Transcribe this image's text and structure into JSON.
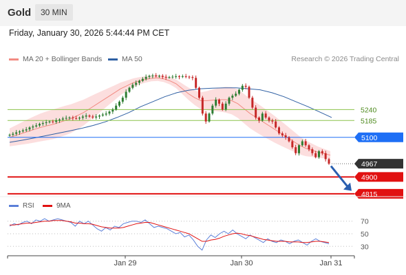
{
  "header": {
    "instrument": "Gold",
    "timeframe": "30 MIN"
  },
  "datetime": "Friday, January 30, 2026 5:44:44 PM CET",
  "legend": {
    "ma20": {
      "label": "MA 20 + Bollinger Bands",
      "color": "#f28b82"
    },
    "ma50": {
      "label": "MA 50",
      "color": "#2e5fa3"
    },
    "credit": "Research © 2026 Trading Central"
  },
  "rsi_legend": {
    "rsi": {
      "label": "RSI",
      "color": "#5b7fd8"
    },
    "ma9": {
      "label": "9MA",
      "color": "#e11111"
    }
  },
  "chart_data": [
    {
      "type": "candlestick",
      "title": "Gold",
      "x_ticks": [
        "Jan 29",
        "Jan 30",
        "Jan 31"
      ],
      "levels": [
        {
          "label": "5240",
          "value": 5240,
          "color": "#8bc34a",
          "style": "text"
        },
        {
          "label": "5185",
          "value": 5185,
          "color": "#8bc34a",
          "style": "text"
        },
        {
          "label": "5100",
          "value": 5100,
          "color": "#1e6ff5",
          "style": "badge"
        },
        {
          "label": "4967",
          "value": 4967,
          "color": "#333333",
          "style": "badge"
        },
        {
          "label": "4900",
          "value": 4900,
          "color": "#e11111",
          "style": "badge"
        },
        {
          "label": "4815",
          "value": 4815,
          "color": "#e11111",
          "style": "badge"
        }
      ],
      "series": [
        {
          "name": "MA 20 + Bollinger Bands",
          "color": "#f28b82"
        },
        {
          "name": "MA 50",
          "color": "#2e5fa3"
        }
      ],
      "close": [
        5113,
        5118,
        5125,
        5130,
        5135,
        5140,
        5150,
        5155,
        5160,
        5168,
        5172,
        5176,
        5180,
        5178,
        5185,
        5190,
        5195,
        5198,
        5200,
        5197,
        5195,
        5199,
        5205,
        5210,
        5205,
        5200,
        5205,
        5210,
        5215,
        5220,
        5230,
        5240,
        5260,
        5280,
        5300,
        5330,
        5350,
        5365,
        5375,
        5385,
        5395,
        5405,
        5410,
        5412,
        5408,
        5410,
        5405,
        5402,
        5404,
        5406,
        5408,
        5405,
        5408,
        5406,
        5404,
        5400,
        5350,
        5300,
        5220,
        5180,
        5220,
        5260,
        5290,
        5270,
        5240,
        5270,
        5300,
        5310,
        5320,
        5340,
        5360,
        5355,
        5300,
        5250,
        5200,
        5185,
        5220,
        5200,
        5185,
        5180,
        5150,
        5120,
        5110,
        5100,
        5080,
        5050,
        5020,
        5060,
        5080,
        5060,
        5040,
        5020,
        5000,
        5030,
        5020,
        4990,
        4967
      ],
      "ma20": [
        5100,
        5110,
        5120,
        5130,
        5140,
        5150,
        5158,
        5165,
        5175,
        5185,
        5195,
        5210,
        5225,
        5245,
        5265,
        5285,
        5305,
        5325,
        5345,
        5360,
        5375,
        5385,
        5392,
        5398,
        5400,
        5395,
        5385,
        5370,
        5345,
        5320,
        5300,
        5285,
        5285,
        5288,
        5290,
        5290,
        5285,
        5270,
        5245,
        5220,
        5200,
        5180,
        5160,
        5140,
        5120,
        5100,
        5080,
        5060,
        5045,
        5035,
        5025,
        5018,
        5010
      ],
      "ma50": [
        5075,
        5085,
        5096,
        5108,
        5120,
        5132,
        5145,
        5160,
        5178,
        5200,
        5225,
        5255,
        5280,
        5305,
        5325,
        5338,
        5345,
        5348,
        5350,
        5350,
        5345,
        5340,
        5325,
        5305,
        5280,
        5255,
        5228,
        5200
      ]
    },
    {
      "type": "line",
      "title": "RSI",
      "y_ticks": [
        70,
        50,
        30
      ],
      "ylim": [
        15,
        85
      ],
      "series": [
        {
          "name": "RSI",
          "color": "#5b7fd8",
          "values": [
            62,
            66,
            64,
            68,
            70,
            66,
            72,
            70,
            74,
            70,
            72,
            74,
            72,
            70,
            68,
            62,
            70,
            66,
            70,
            64,
            58,
            54,
            60,
            56,
            62,
            60,
            66,
            68,
            70,
            70,
            68,
            72,
            66,
            60,
            62,
            60,
            58,
            54,
            50,
            52,
            45,
            48,
            40,
            30,
            24,
            40,
            48,
            44,
            50,
            54,
            50,
            56,
            50,
            46,
            42,
            48,
            44,
            40,
            36,
            42,
            38,
            36,
            40,
            38,
            34,
            38,
            40,
            36,
            32,
            38,
            42,
            38,
            36,
            34
          ]
        },
        {
          "name": "9MA",
          "color": "#e11111",
          "values": [
            64,
            64,
            65,
            66,
            67,
            67,
            68,
            69,
            70,
            70,
            71,
            71,
            71,
            70,
            69,
            67,
            67,
            66,
            66,
            65,
            63,
            61,
            60,
            59,
            59,
            59,
            60,
            62,
            64,
            66,
            67,
            68,
            68,
            66,
            64,
            62,
            60,
            58,
            56,
            54,
            52,
            50,
            46,
            42,
            38,
            38,
            40,
            41,
            43,
            46,
            48,
            50,
            51,
            50,
            48,
            47,
            45,
            43,
            41,
            40,
            39,
            38,
            38,
            38,
            37,
            37,
            37,
            36,
            36,
            37,
            38,
            38,
            37,
            36
          ]
        }
      ]
    }
  ]
}
